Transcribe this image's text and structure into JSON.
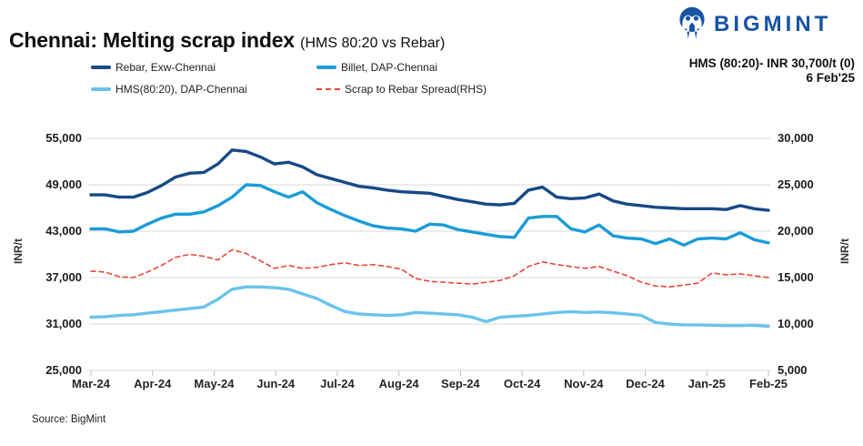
{
  "header": {
    "title": "Chennai: Melting scrap index",
    "subtitle": "(HMS 80:20 vs Rebar)",
    "brand": "BIGMINT",
    "price_note": "HMS (80:20)- INR 30,700/t (0)",
    "date_note": "6 Feb'25"
  },
  "footer": {
    "source": "Source: BigMint"
  },
  "colors": {
    "rebar": "#174a85",
    "billet": "#1a9cd8",
    "hms": "#6ac3ec",
    "spread": "#e8463f",
    "gridline": "#d9d9d9",
    "tick": "#bfbfbf",
    "brand_blue": "#1654a4"
  },
  "chart_data": {
    "type": "line",
    "title": "Chennai: Melting scrap index (HMS 80:20 vs Rebar)",
    "x_tick_labels": [
      "Mar-24",
      "Apr-24",
      "May-24",
      "Jun-24",
      "Jul-24",
      "Aug-24",
      "Sep-24",
      "Oct-24",
      "Nov-24",
      "Dec-24",
      "Jan-25",
      "Feb-25"
    ],
    "y_left": {
      "label": "INR/t",
      "min": 25000,
      "max": 55000,
      "ticks": [
        "55,000",
        "49,000",
        "43,000",
        "37,000",
        "31,000",
        "25,000"
      ]
    },
    "y_right": {
      "label": "INR/t",
      "min": 5000,
      "max": 30000,
      "ticks": [
        "30,000",
        "25,000",
        "20,000",
        "15,000",
        "10,000",
        "5,000"
      ]
    },
    "grid": "horizontal-only",
    "legend_position": "top-left-two-columns",
    "series": [
      {
        "name": "Rebar, Exw-Chennai",
        "axis": "left",
        "color": "#174a85",
        "dash": false,
        "width": 3.4,
        "values": [
          47700,
          47700,
          47400,
          47400,
          48000,
          48900,
          50000,
          50500,
          50600,
          51700,
          53500,
          53300,
          52600,
          51700,
          51900,
          51300,
          50300,
          49800,
          49300,
          48800,
          48600,
          48300,
          48100,
          48000,
          47900,
          47500,
          47100,
          46800,
          46500,
          46400,
          46600,
          48300,
          48700,
          47400,
          47200,
          47300,
          47800,
          46900,
          46500,
          46300,
          46100,
          46000,
          45900,
          45900,
          45900,
          45800,
          46300,
          45900,
          45700
        ]
      },
      {
        "name": "Billet, DAP-Chennai",
        "axis": "left",
        "color": "#1a9cd8",
        "dash": false,
        "width": 3.4,
        "values": [
          43300,
          43300,
          42900,
          43000,
          43900,
          44700,
          45200,
          45200,
          45500,
          46300,
          47400,
          49000,
          48900,
          48100,
          47400,
          48100,
          46700,
          45800,
          45000,
          44300,
          43700,
          43400,
          43300,
          43000,
          43900,
          43800,
          43200,
          42900,
          42600,
          42300,
          42200,
          44700,
          44900,
          44900,
          43300,
          42900,
          43800,
          42400,
          42100,
          42000,
          41400,
          42000,
          41200,
          42000,
          42100,
          42000,
          42800,
          41900,
          41500
        ]
      },
      {
        "name": "HMS(80:20), DAP-Chennai",
        "axis": "left",
        "color": "#6ac3ec",
        "dash": false,
        "width": 3.4,
        "values": [
          31900,
          31950,
          32100,
          32200,
          32400,
          32600,
          32800,
          33000,
          33200,
          34200,
          35500,
          35800,
          35800,
          35700,
          35500,
          34900,
          34300,
          33400,
          32600,
          32300,
          32200,
          32100,
          32200,
          32500,
          32400,
          32300,
          32200,
          31900,
          31300,
          31900,
          32000,
          32100,
          32300,
          32500,
          32600,
          32500,
          32550,
          32450,
          32300,
          32100,
          31200,
          31000,
          30900,
          30900,
          30850,
          30800,
          30800,
          30850,
          30700
        ]
      },
      {
        "name": "Scrap to Rebar Spread(RHS)",
        "axis": "right",
        "color": "#e8463f",
        "dash": true,
        "width": 1.6,
        "values": [
          15700,
          15600,
          15100,
          15000,
          15600,
          16300,
          17200,
          17500,
          17300,
          16900,
          18000,
          17600,
          16800,
          16000,
          16300,
          16000,
          16100,
          16400,
          16600,
          16300,
          16400,
          16200,
          15900,
          14900,
          14600,
          14500,
          14400,
          14300,
          14500,
          14700,
          15200,
          16200,
          16700,
          16400,
          16200,
          16000,
          16200,
          15700,
          15200,
          14500,
          14100,
          14000,
          14200,
          14400,
          15500,
          15300,
          15400,
          15200,
          15000
        ]
      }
    ]
  }
}
